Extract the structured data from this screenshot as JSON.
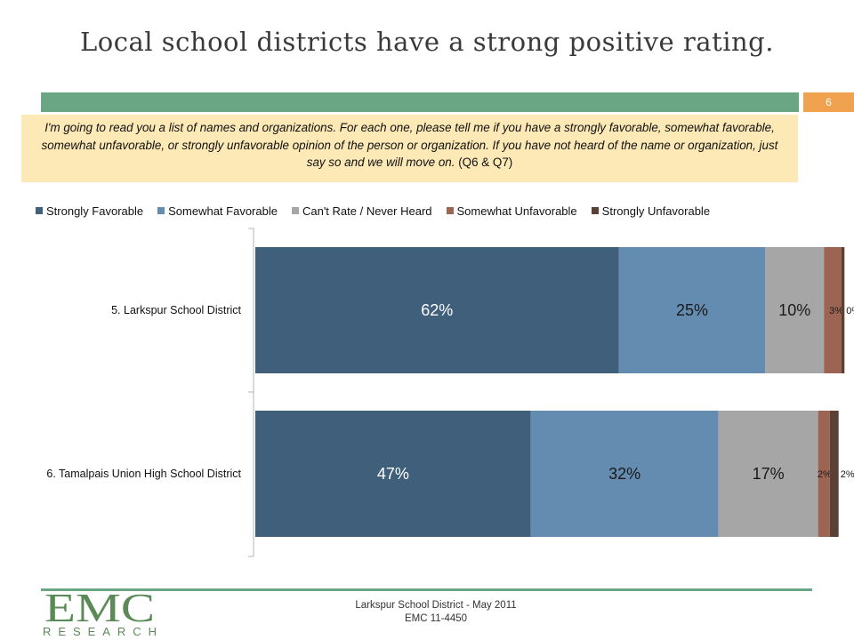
{
  "title": "Local school districts have a strong positive rating.",
  "page_number": "6",
  "question": {
    "text": "I'm going to read you a list of names and organizations. For each one, please tell me if you have a strongly favorable, somewhat favorable, somewhat unfavorable, or strongly unfavorable opinion of the person or organization. If you have not heard of the name or organization, just say so and we will move on.",
    "ref": "(Q6 & Q7)"
  },
  "chart_data": {
    "type": "bar",
    "orientation": "horizontal",
    "stacked": true,
    "categories": [
      "5. Larkspur School District",
      "6. Tamalpais Union High School District"
    ],
    "series": [
      {
        "name": "Strongly Favorable",
        "color": "#3f5f7b",
        "values": [
          62,
          47
        ],
        "labels": [
          "62%",
          "47%"
        ]
      },
      {
        "name": "Somewhat Favorable",
        "color": "#648bb0",
        "values": [
          25,
          32
        ],
        "labels": [
          "25%",
          "32%"
        ]
      },
      {
        "name": "Can't Rate / Never Heard",
        "color": "#a6a6a6",
        "values": [
          10,
          17
        ],
        "labels": [
          "10%",
          "17%"
        ]
      },
      {
        "name": "Somewhat Unfavorable",
        "color": "#9c6452",
        "values": [
          3,
          2
        ],
        "labels": [
          "3%",
          "2%"
        ]
      },
      {
        "name": "Strongly Unfavorable",
        "color": "#5b4035",
        "values": [
          0.5,
          1.5
        ],
        "labels": [
          "0%",
          "2%"
        ]
      }
    ],
    "xlim": [
      0,
      100
    ],
    "legend_position": "top",
    "grid": false
  },
  "footer": {
    "line1": "Larkspur School District - May 2011",
    "line2": "EMC 11-4450",
    "logo_text": "EMC",
    "logo_subtext": "RESEARCH"
  }
}
